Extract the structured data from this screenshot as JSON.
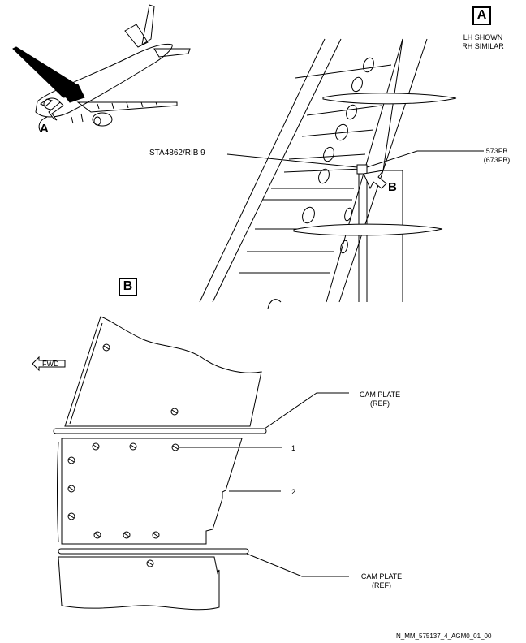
{
  "view_a": {
    "label": "A",
    "note_line1": "LH SHOWN",
    "note_line2": "RH SIMILAR",
    "station_label": "STA4862/RIB 9",
    "panel_label": "573FB",
    "panel_label_alt": "(673FB)",
    "detail_arrow_label": "B"
  },
  "aircraft": {
    "view_arrow_label": "A"
  },
  "detail_b": {
    "label": "B",
    "fwd_label": "FWD",
    "callout_1": "1",
    "callout_2": "2",
    "cam_plate_top_line1": "CAM PLATE",
    "cam_plate_top_line2": "(REF)",
    "cam_plate_bottom_line1": "CAM PLATE",
    "cam_plate_bottom_line2": "(REF)"
  },
  "footer": {
    "figure_id": "N_MM_575137_4_AGM0_01_00"
  }
}
